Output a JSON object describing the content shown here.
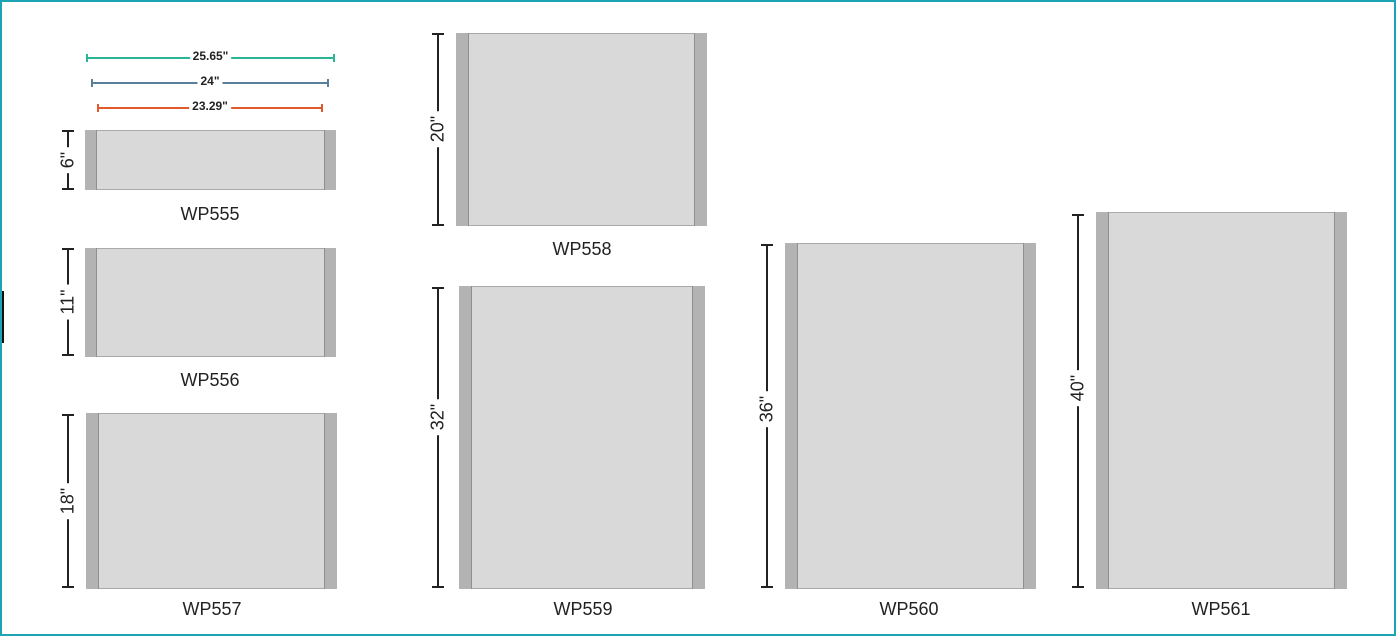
{
  "width_dimensions": [
    {
      "label": "25.65\"",
      "color": "#2bb597"
    },
    {
      "label": "24\"",
      "color": "#5a7f9a"
    },
    {
      "label": "23.29\"",
      "color": "#e05a2b"
    }
  ],
  "signs": [
    {
      "model": "WP555",
      "height_label": "6\""
    },
    {
      "model": "WP556",
      "height_label": "11\""
    },
    {
      "model": "WP557",
      "height_label": "18\""
    },
    {
      "model": "WP558",
      "height_label": "20\""
    },
    {
      "model": "WP559",
      "height_label": "32\""
    },
    {
      "model": "WP560",
      "height_label": "36\""
    },
    {
      "model": "WP561",
      "height_label": "40\""
    }
  ],
  "colors": {
    "border": "#1ca3b4",
    "panel": "#d9d9d9",
    "end_cap": "#b3b3b3"
  }
}
